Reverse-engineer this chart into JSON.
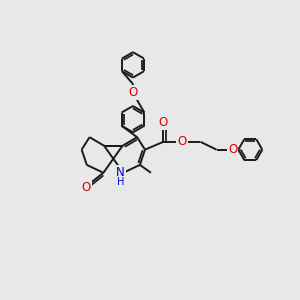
{
  "bg_color": "#e8e8e8",
  "bond_color": "#1a1a1a",
  "bond_width": 1.4,
  "atom_colors": {
    "O": "#dd0000",
    "N": "#0000cc",
    "C": "#1a1a1a"
  },
  "font_size": 8.5
}
